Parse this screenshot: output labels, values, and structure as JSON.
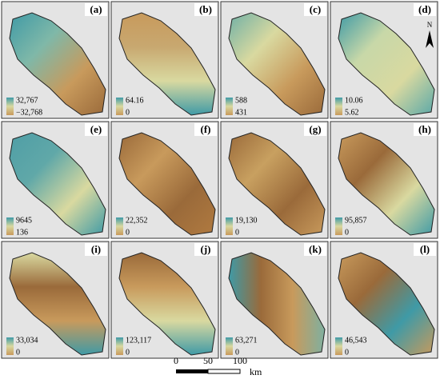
{
  "panels": [
    {
      "label": "(a)",
      "max": "32,767",
      "min": "−32,768"
    },
    {
      "label": "(b)",
      "max": "64.16",
      "min": "0"
    },
    {
      "label": "(c)",
      "max": "588",
      "min": "431"
    },
    {
      "label": "(d)",
      "max": "10.06",
      "min": "5.62"
    },
    {
      "label": "(e)",
      "max": "9645",
      "min": "136"
    },
    {
      "label": "(f)",
      "max": "22,352",
      "min": "0"
    },
    {
      "label": "(g)",
      "max": "19,130",
      "min": "0"
    },
    {
      "label": "(h)",
      "max": "95,857",
      "min": "0"
    },
    {
      "label": "(i)",
      "max": "33,034",
      "min": "0"
    },
    {
      "label": "(j)",
      "max": "123,117",
      "min": "0"
    },
    {
      "label": "(k)",
      "max": "63,271",
      "min": "0"
    },
    {
      "label": "(l)",
      "max": "46,543",
      "min": "0"
    }
  ],
  "north": "N",
  "scale_bar": {
    "ticks": [
      "0",
      "50",
      "100"
    ],
    "unit": "km"
  }
}
